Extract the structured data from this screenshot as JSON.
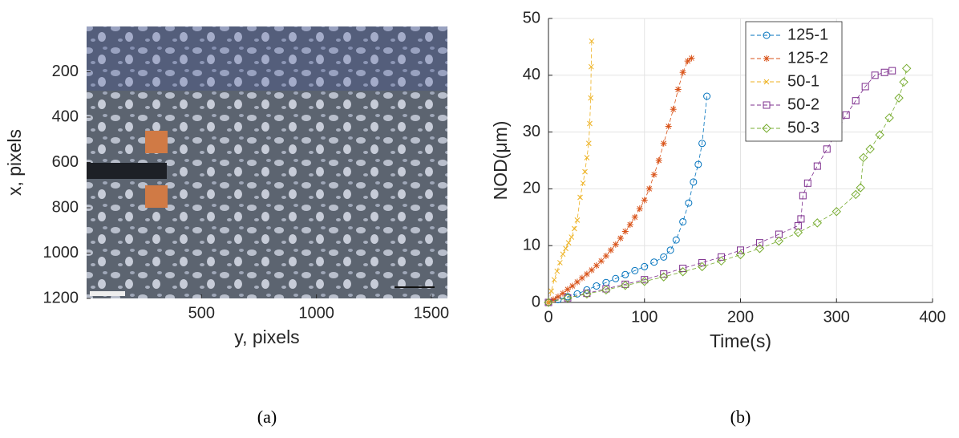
{
  "chart_data": [
    {
      "type": "image",
      "xlabel": "y, pixels",
      "ylabel": "x, pixels",
      "caption": "(a)",
      "xlim": [
        0,
        1570
      ],
      "ylim": [
        1200,
        0
      ],
      "xticks": [
        500,
        1000,
        1500
      ],
      "yticks": [
        200,
        400,
        600,
        800,
        1000,
        1200
      ]
    },
    {
      "type": "line",
      "xlabel": "Time(s)",
      "ylabel": "NOD(μm)",
      "caption": "(b)",
      "xlim": [
        0,
        400
      ],
      "ylim": [
        0,
        50
      ],
      "xticks": [
        0,
        100,
        200,
        300,
        400
      ],
      "yticks": [
        0,
        10,
        20,
        30,
        40,
        50
      ],
      "grid": true,
      "legend": "north",
      "series": [
        {
          "name": "125-1",
          "color": "#0072bd",
          "marker": "circle",
          "x": [
            0,
            10,
            20,
            30,
            40,
            50,
            60,
            70,
            80,
            90,
            100,
            110,
            120,
            127,
            133,
            140,
            146,
            151,
            156,
            160,
            165
          ],
          "values": [
            0,
            0.5,
            1,
            1.5,
            2.2,
            2.9,
            3.5,
            4.2,
            4.9,
            5.6,
            6.3,
            7.1,
            8,
            9.2,
            11,
            14.2,
            17.5,
            21.2,
            24.3,
            28,
            36.3
          ]
        },
        {
          "name": "125-2",
          "color": "#d95319",
          "marker": "star",
          "x": [
            0,
            5,
            10,
            15,
            20,
            25,
            30,
            35,
            40,
            45,
            50,
            55,
            60,
            65,
            70,
            75,
            80,
            85,
            90,
            95,
            100,
            105,
            110,
            115,
            120,
            125,
            130,
            135,
            140,
            145,
            149
          ],
          "values": [
            0,
            0.5,
            1,
            1.6,
            2.3,
            2.9,
            3.6,
            4.3,
            5,
            5.7,
            6.5,
            7.3,
            8.2,
            9.2,
            10.2,
            11.3,
            12.5,
            13.7,
            15,
            16.5,
            18,
            20,
            22.5,
            25,
            28,
            31,
            34,
            37.5,
            40.5,
            42.5,
            43
          ]
        },
        {
          "name": "50-1",
          "color": "#edb120",
          "marker": "x",
          "x": [
            0,
            3,
            6,
            9,
            12,
            15,
            18,
            21,
            24,
            27,
            30,
            33,
            36,
            38,
            40,
            42,
            43,
            44,
            44.5,
            45
          ],
          "values": [
            0,
            2,
            4,
            5.5,
            7,
            8.5,
            9.5,
            10.5,
            11.5,
            13,
            14.5,
            18.5,
            21,
            23,
            25.5,
            28,
            31.5,
            36,
            41.5,
            46
          ]
        },
        {
          "name": "50-2",
          "color": "#7e2f8e",
          "marker": "square",
          "x": [
            0,
            20,
            40,
            60,
            80,
            100,
            120,
            140,
            160,
            180,
            200,
            220,
            240,
            260,
            263,
            265,
            270,
            280,
            290,
            300,
            310,
            320,
            330,
            340,
            350,
            358
          ],
          "values": [
            0,
            0.8,
            1.6,
            2.4,
            3.2,
            4,
            5,
            6,
            7,
            8,
            9.2,
            10.5,
            12,
            13.5,
            14.7,
            18.8,
            21,
            24,
            27,
            30,
            33,
            35.5,
            38,
            40,
            40.5,
            40.8
          ]
        },
        {
          "name": "50-3",
          "color": "#77ac30",
          "marker": "diamond",
          "x": [
            0,
            20,
            40,
            60,
            80,
            100,
            120,
            140,
            160,
            180,
            200,
            220,
            240,
            260,
            280,
            300,
            320,
            325,
            328,
            335,
            345,
            355,
            365,
            370,
            373
          ],
          "values": [
            0,
            0.8,
            1.5,
            2.2,
            3,
            3.7,
            4.5,
            5.4,
            6.3,
            7.3,
            8.4,
            9.5,
            10.8,
            12.3,
            14,
            16,
            19,
            20.2,
            25.5,
            27,
            29.5,
            32.5,
            36,
            38.8,
            41.2
          ]
        }
      ]
    }
  ]
}
